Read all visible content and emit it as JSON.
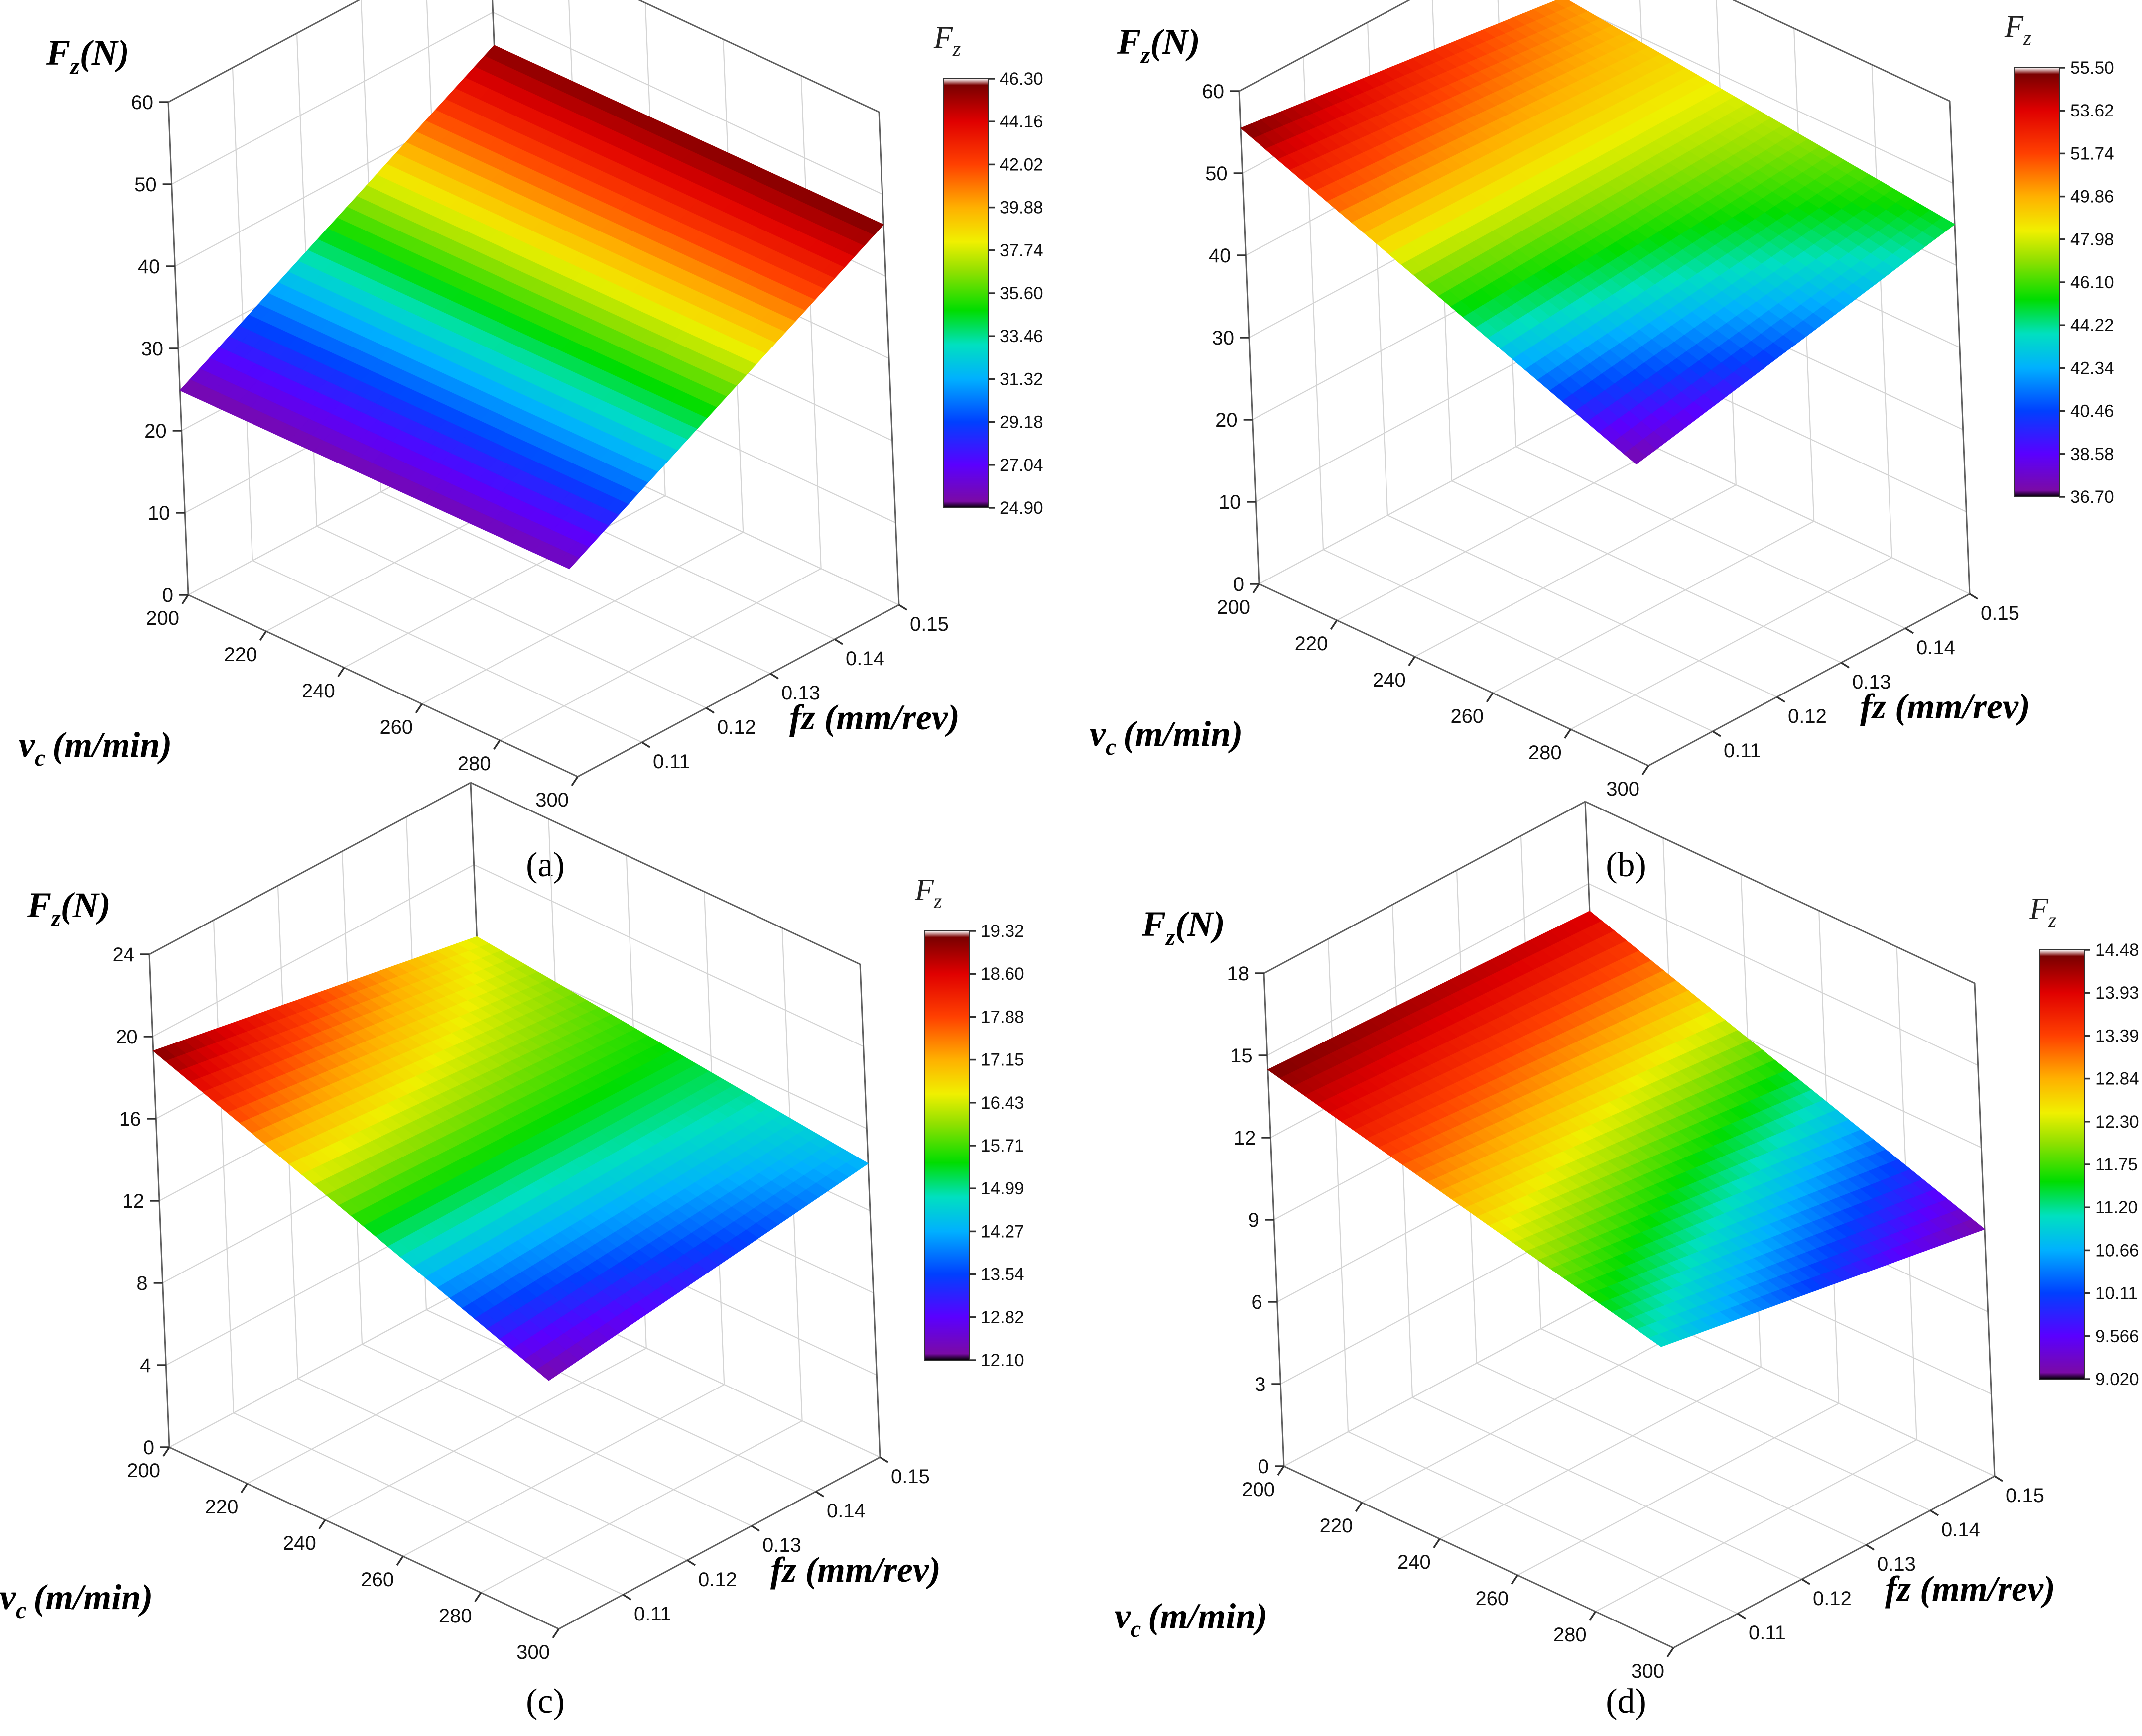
{
  "figure": {
    "panels": [
      {
        "label": "(a)",
        "letter": "a"
      },
      {
        "label": "(b)",
        "letter": "b"
      },
      {
        "label": "(c)",
        "letter": "c"
      },
      {
        "label": "(d)",
        "letter": "d"
      }
    ]
  },
  "chart_data": [
    {
      "type": "surface3d",
      "panel": "(a)",
      "zlabel": "F",
      "zlabel_sub": "z",
      "zlabel_unit": "(N)",
      "xlabel": "v",
      "xlabel_sub": "c",
      "xlabel_unit": "(m/min)",
      "ylabel": "fz (mm/rev)",
      "x_ticks": [
        "200",
        "220",
        "240",
        "260",
        "280",
        "300"
      ],
      "y_ticks": [
        "0.11",
        "0.12",
        "0.13",
        "0.14",
        "0.15"
      ],
      "z_ticks": [
        "0",
        "10",
        "20",
        "30",
        "40",
        "50",
        "60"
      ],
      "x_range": [
        200,
        300
      ],
      "y_range": [
        0.1,
        0.15
      ],
      "z_range": [
        0,
        60
      ],
      "corners": {
        "vmin_fmin": 24.9,
        "vmax_fmin": 25.3,
        "vmin_fmax": 46.0,
        "vmax_fmax": 46.3
      },
      "colorbar": {
        "title": "F",
        "sub": "z",
        "ticks": [
          "46.30",
          "44.16",
          "42.02",
          "39.88",
          "37.74",
          "35.60",
          "33.46",
          "31.32",
          "29.18",
          "27.04",
          "24.90"
        ],
        "min": 24.9,
        "max": 46.3
      }
    },
    {
      "type": "surface3d",
      "panel": "(b)",
      "zlabel": "F",
      "zlabel_sub": "z",
      "zlabel_unit": "(N)",
      "xlabel": "v",
      "xlabel_sub": "c",
      "xlabel_unit": "(m/min)",
      "ylabel": "fz (mm/rev)",
      "x_ticks": [
        "200",
        "220",
        "240",
        "260",
        "280",
        "300"
      ],
      "y_ticks": [
        "0.11",
        "0.12",
        "0.13",
        "0.14",
        "0.15"
      ],
      "z_ticks": [
        "0",
        "10",
        "20",
        "30",
        "40",
        "50",
        "60"
      ],
      "x_range": [
        200,
        300
      ],
      "y_range": [
        0.1,
        0.15
      ],
      "z_range": [
        0,
        60
      ],
      "corners": {
        "vmin_fmin": 55.5,
        "vmax_fmin": 36.7,
        "vmin_fmax": 50.5,
        "vmax_fmax": 45.0
      },
      "colorbar": {
        "title": "F",
        "sub": "z",
        "ticks": [
          "55.50",
          "53.62",
          "51.74",
          "49.86",
          "47.98",
          "46.10",
          "44.22",
          "42.34",
          "40.46",
          "38.58",
          "36.70"
        ],
        "min": 36.7,
        "max": 55.5
      }
    },
    {
      "type": "surface3d",
      "panel": "(c)",
      "zlabel": "F",
      "zlabel_sub": "z",
      "zlabel_unit": "(N)",
      "xlabel": "v",
      "xlabel_sub": "c",
      "xlabel_unit": "(m/min)",
      "ylabel": "fz (mm/rev)",
      "x_ticks": [
        "200",
        "220",
        "240",
        "260",
        "280",
        "300"
      ],
      "y_ticks": [
        "0.11",
        "0.12",
        "0.13",
        "0.14",
        "0.15"
      ],
      "z_ticks": [
        "0",
        "4",
        "8",
        "12",
        "16",
        "20",
        "24"
      ],
      "x_range": [
        200,
        300
      ],
      "y_range": [
        0.1,
        0.15
      ],
      "z_range": [
        0,
        24
      ],
      "corners": {
        "vmin_fmin": 19.3,
        "vmax_fmin": 12.1,
        "vmin_fmax": 16.5,
        "vmax_fmax": 14.3
      },
      "colorbar": {
        "title": "F",
        "sub": "z",
        "ticks": [
          "19.32",
          "18.60",
          "17.88",
          "17.15",
          "16.43",
          "15.71",
          "14.99",
          "14.27",
          "13.54",
          "12.82",
          "12.10"
        ],
        "min": 12.1,
        "max": 19.32
      }
    },
    {
      "type": "surface3d",
      "panel": "(d)",
      "zlabel": "F",
      "zlabel_sub": "z",
      "zlabel_unit": "(N)",
      "xlabel": "v",
      "xlabel_sub": "c",
      "xlabel_unit": "(m/min)",
      "ylabel": "fz (mm/rev)",
      "x_ticks": [
        "200",
        "220",
        "240",
        "260",
        "280",
        "300"
      ],
      "y_ticks": [
        "0.11",
        "0.12",
        "0.13",
        "0.14",
        "0.15"
      ],
      "z_ticks": [
        "0",
        "3",
        "6",
        "9",
        "12",
        "15",
        "18"
      ],
      "x_range": [
        200,
        300
      ],
      "y_range": [
        0.1,
        0.15
      ],
      "z_range": [
        0,
        18
      ],
      "corners": {
        "vmin_fmin": 14.48,
        "vmax_fmin": 11.0,
        "vmin_fmax": 14.0,
        "vmax_fmax": 9.02
      },
      "colorbar": {
        "title": "F",
        "sub": "z",
        "ticks": [
          "14.48",
          "13.93",
          "13.39",
          "12.84",
          "12.30",
          "11.75",
          "11.20",
          "10.66",
          "10.11",
          "9.566",
          "9.020"
        ],
        "min": 9.02,
        "max": 14.48
      }
    }
  ]
}
